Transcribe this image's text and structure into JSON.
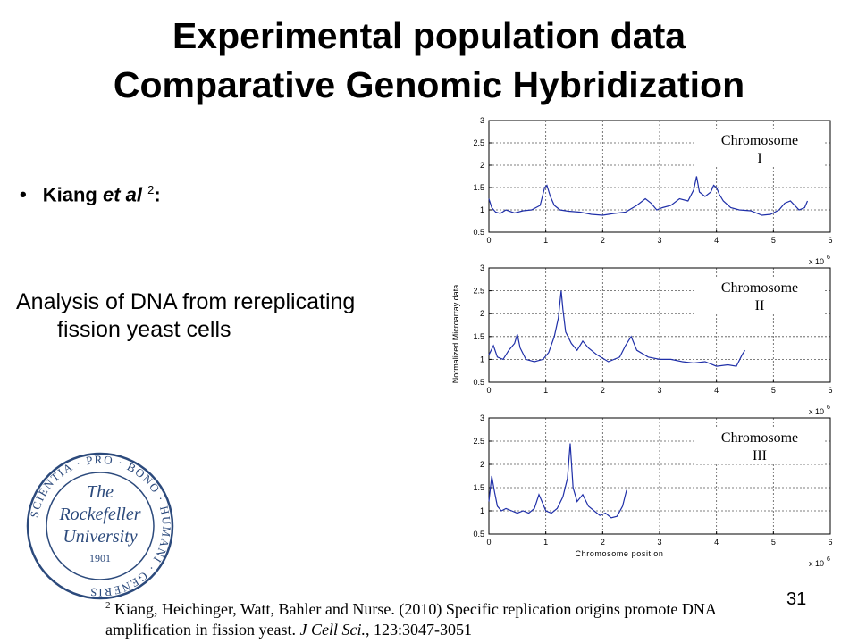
{
  "slide": {
    "title_line1": "Experimental population data",
    "title_line2": "Comparative Genomic Hybridization",
    "bullet_author": "Kiang",
    "bullet_etal": "et al",
    "bullet_ref": "2",
    "bullet_colon": ":",
    "body_line1": "Analysis of DNA from rereplicating",
    "body_line2": "fission yeast cells",
    "page_number": "31",
    "footnote": {
      "ref": "2",
      "text1": "Kiang,  Heichinger, Watt, Bahler and Nurse. (2010) Specific replication origins promote DNA",
      "text2a": "amplification in fission yeast.",
      "journal": "J Cell Sci.",
      "text2b": ", 123:3047-3051"
    },
    "seal": {
      "ring_text": "SCIENTIA · PRO · BONO · HUMANI · GENERIS",
      "line1": "The",
      "line2": "Rockefeller",
      "line3": "University",
      "year": "1901"
    }
  },
  "chart_data": [
    {
      "type": "line",
      "annotation": [
        "Chromosome",
        "I"
      ],
      "xlim": [
        0,
        6
      ],
      "ylim": [
        0.5,
        3
      ],
      "xticks": [
        "0",
        "1",
        "2",
        "3",
        "4",
        "5",
        "6"
      ],
      "yticks": [
        "0.5",
        "1",
        "1.5",
        "2",
        "2.5",
        "3"
      ],
      "xscale_base": "x 10",
      "xscale_exp": "6",
      "xlabel": "",
      "ylabel": "",
      "grid": true,
      "line_color": "#1f2fa8",
      "series": [
        {
          "x": [
            0,
            0.05,
            0.12,
            0.2,
            0.3,
            0.45,
            0.6,
            0.75,
            0.9,
            0.98,
            1.02,
            1.08,
            1.15,
            1.25,
            1.4,
            1.6,
            1.8,
            2.0,
            2.2,
            2.4,
            2.6,
            2.75,
            2.85,
            2.95,
            3.05,
            3.2,
            3.35,
            3.5,
            3.6,
            3.65,
            3.7,
            3.8,
            3.9,
            3.95,
            4.0,
            4.05,
            4.12,
            4.25,
            4.4,
            4.6,
            4.8,
            4.95,
            5.1,
            5.2,
            5.3,
            5.45,
            5.55,
            5.6
          ],
          "y": [
            1.25,
            1.05,
            0.95,
            0.92,
            1.0,
            0.93,
            0.98,
            1.0,
            1.1,
            1.5,
            1.55,
            1.3,
            1.1,
            1.0,
            0.97,
            0.95,
            0.9,
            0.88,
            0.92,
            0.95,
            1.1,
            1.25,
            1.15,
            1.0,
            1.05,
            1.1,
            1.25,
            1.2,
            1.45,
            1.75,
            1.4,
            1.3,
            1.4,
            1.55,
            1.5,
            1.35,
            1.2,
            1.05,
            1.0,
            0.98,
            0.88,
            0.9,
            1.0,
            1.15,
            1.2,
            1.0,
            1.05,
            1.2
          ]
        }
      ]
    },
    {
      "type": "line",
      "annotation": [
        "Chromosome",
        "II"
      ],
      "xlim": [
        0,
        6
      ],
      "ylim": [
        0.5,
        3
      ],
      "xticks": [
        "0",
        "1",
        "2",
        "3",
        "4",
        "5",
        "6"
      ],
      "yticks": [
        "0.5",
        "1",
        "1.5",
        "2",
        "2.5",
        "3"
      ],
      "xscale_base": "x 10",
      "xscale_exp": "6",
      "xlabel": "",
      "ylabel": "Normalized Microarray data",
      "grid": true,
      "line_color": "#1f2fa8",
      "series": [
        {
          "x": [
            0,
            0.08,
            0.15,
            0.25,
            0.35,
            0.45,
            0.5,
            0.55,
            0.65,
            0.8,
            0.95,
            1.05,
            1.15,
            1.22,
            1.27,
            1.3,
            1.35,
            1.45,
            1.55,
            1.65,
            1.75,
            1.9,
            2.1,
            2.3,
            2.4,
            2.5,
            2.6,
            2.8,
            3.0,
            3.2,
            3.4,
            3.6,
            3.8,
            4.0,
            4.2,
            4.35,
            4.45,
            4.5
          ],
          "y": [
            1.1,
            1.3,
            1.05,
            1.0,
            1.2,
            1.35,
            1.55,
            1.25,
            1.0,
            0.95,
            1.0,
            1.15,
            1.5,
            1.9,
            2.5,
            2.1,
            1.6,
            1.35,
            1.2,
            1.4,
            1.25,
            1.1,
            0.95,
            1.05,
            1.3,
            1.5,
            1.2,
            1.05,
            1.0,
            1.0,
            0.95,
            0.92,
            0.95,
            0.85,
            0.88,
            0.85,
            1.1,
            1.2
          ]
        }
      ]
    },
    {
      "type": "line",
      "annotation": [
        "Chromosome",
        "III"
      ],
      "xlim": [
        0,
        6
      ],
      "ylim": [
        0.5,
        3
      ],
      "xticks": [
        "0",
        "1",
        "2",
        "3",
        "4",
        "5",
        "6"
      ],
      "yticks": [
        "0.5",
        "1",
        "1.5",
        "2",
        "2.5",
        "3"
      ],
      "xscale_base": "x 10",
      "xscale_exp": "6",
      "xlabel": "Chromosome position",
      "ylabel": "",
      "grid": true,
      "line_color": "#1f2fa8",
      "series": [
        {
          "x": [
            0,
            0.05,
            0.1,
            0.15,
            0.22,
            0.3,
            0.4,
            0.5,
            0.6,
            0.7,
            0.8,
            0.88,
            0.95,
            1.0,
            1.1,
            1.2,
            1.3,
            1.38,
            1.43,
            1.48,
            1.55,
            1.65,
            1.75,
            1.85,
            1.95,
            2.05,
            2.15,
            2.25,
            2.35,
            2.42
          ],
          "y": [
            1.2,
            1.75,
            1.4,
            1.1,
            1.0,
            1.05,
            1.0,
            0.95,
            1.0,
            0.95,
            1.05,
            1.35,
            1.15,
            1.0,
            0.95,
            1.05,
            1.3,
            1.7,
            2.45,
            1.5,
            1.2,
            1.35,
            1.1,
            1.0,
            0.9,
            0.95,
            0.85,
            0.88,
            1.1,
            1.45
          ]
        }
      ]
    }
  ]
}
